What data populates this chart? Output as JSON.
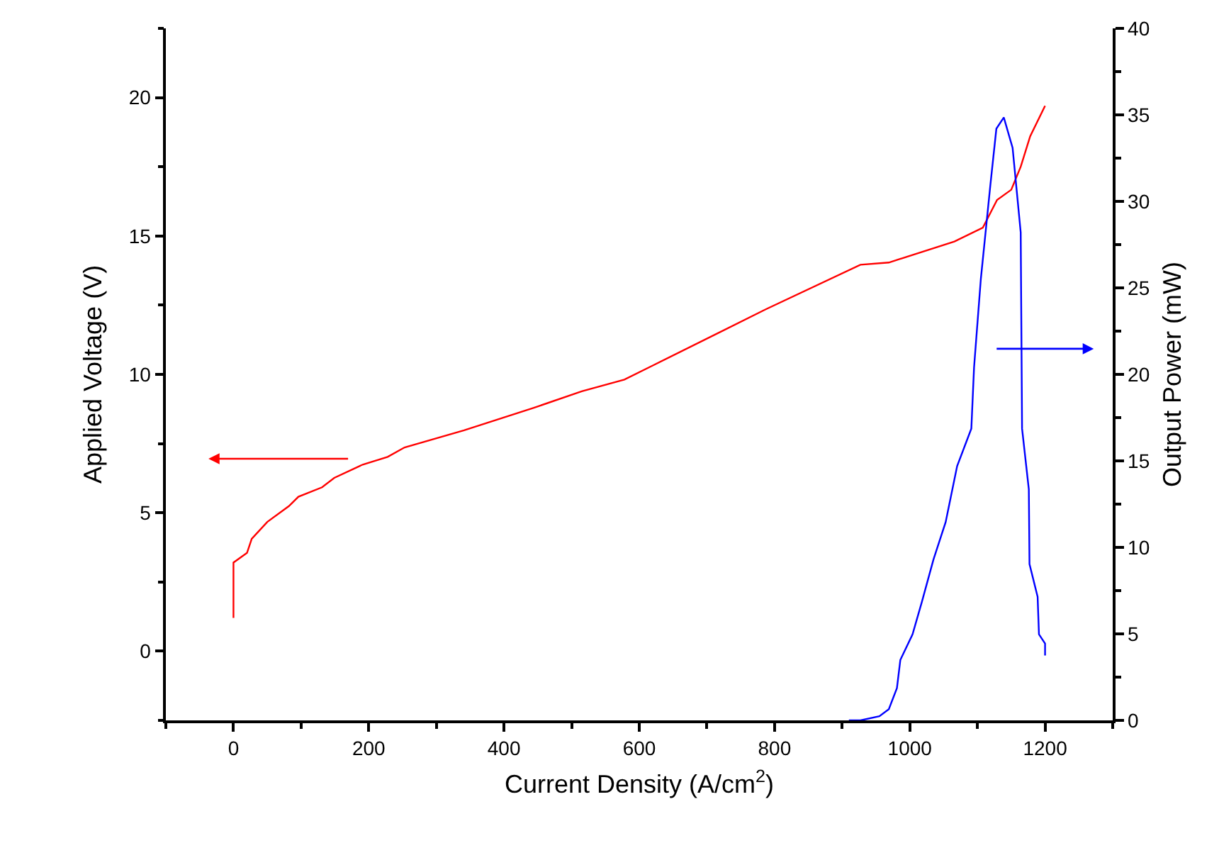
{
  "chart_data": {
    "type": "line",
    "xlabel": "Current Density (A/cm$^{2}$)",
    "ylabel": "Applied Voltage (V)",
    "y2label": "Output Power (mW)",
    "xlim": [
      -100,
      1300
    ],
    "xticks": [
      0,
      200,
      400,
      600,
      800,
      1000,
      1200
    ],
    "ylim": [
      -2.5,
      22.5
    ],
    "yticks": [
      0,
      5,
      10,
      15,
      20
    ],
    "y2lim": [
      0,
      40
    ],
    "y2ticks": [
      0,
      5,
      10,
      15,
      20,
      25,
      30,
      35,
      40
    ],
    "series": [
      {
        "color": "#ff0000",
        "x": [
          0,
          0,
          20,
          27,
          50,
          82,
          96,
          131,
          149,
          191,
          228,
          253,
          341,
          445,
          515,
          578,
          620,
          787,
          927,
          969,
          1066,
          1108,
          1129,
          1150,
          1164,
          1178,
          1200
        ],
        "values": [
          1.2,
          3.2,
          3.55,
          4.06,
          4.67,
          5.24,
          5.58,
          5.92,
          6.26,
          6.74,
          7.02,
          7.36,
          7.98,
          8.8,
          9.39,
          9.81,
          10.32,
          12.35,
          13.96,
          14.04,
          14.8,
          15.3,
          16.3,
          16.67,
          17.5,
          18.6,
          19.7
        ]
      },
      {
        "color": "#0000ff",
        "axis": "y2",
        "x": [
          910,
          927,
          955,
          969,
          981,
          986,
          1004,
          1018,
          1035,
          1053,
          1070,
          1091,
          1095,
          1105,
          1119,
          1128,
          1139,
          1152,
          1164,
          1166,
          1176,
          1177,
          1189,
          1191,
          1200,
          1200
        ],
        "values": [
          0,
          0,
          0.24,
          0.65,
          1.87,
          3.49,
          4.97,
          6.87,
          9.3,
          11.46,
          14.7,
          16.87,
          20.4,
          25.5,
          30.9,
          34.2,
          34.85,
          33.1,
          28.2,
          16.87,
          13.36,
          9.03,
          7.14,
          4.97,
          4.44,
          3.75
        ]
      }
    ]
  }
}
